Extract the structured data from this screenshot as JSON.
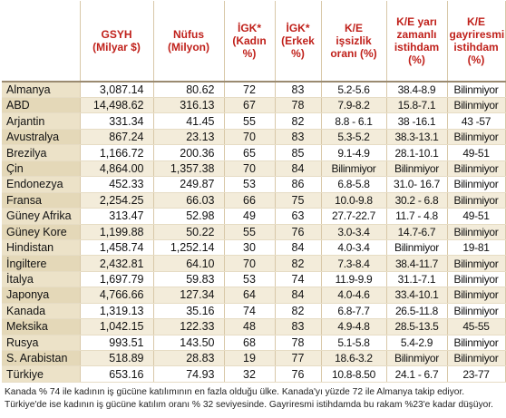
{
  "headers": [
    "",
    "GSYH\n(Milyar $)",
    "Nüfus\n(Milyon)",
    "İGK*\n(Kadın\n%)",
    "İGK*\n(Erkek\n%)",
    "K/E\nişsizlik\noranı (%)",
    "K/E yarı\nzamanlı\nistihdam\n(%)",
    "K/E\ngayriresmi\nistihdam\n(%)"
  ],
  "rows": [
    [
      "Almanya",
      "3,087.14",
      "80.62",
      "72",
      "83",
      "5.2-5.6",
      "38.4-8.9",
      "Bilinmiyor"
    ],
    [
      "ABD",
      "14,498.62",
      "316.13",
      "67",
      "78",
      "7.9-8.2",
      "15.8-7.1",
      "Bilinmiyor"
    ],
    [
      "Arjantin",
      "331.34",
      "41.45",
      "55",
      "82",
      "8.8 - 6.1",
      "38 -16.1",
      "43 -57"
    ],
    [
      "Avustralya",
      "867.24",
      "23.13",
      "70",
      "83",
      "5.3-5.2",
      "38.3-13.1",
      "Bilinmiyor"
    ],
    [
      "Brezilya",
      "1,166.72",
      "200.36",
      "65",
      "85",
      "9.1-4.9",
      "28.1-10.1",
      "49-51"
    ],
    [
      "Çin",
      "4,864.00",
      "1,357.38",
      "70",
      "84",
      "Bilinmiyor",
      "Bilinmiyor",
      "Bilinmiyor"
    ],
    [
      "Endonezya",
      "452.33",
      "249.87",
      "53",
      "86",
      "6.8-5.8",
      "31.0- 16.7",
      "Bilinmiyor"
    ],
    [
      "Fransa",
      "2,254.25",
      "66.03",
      "66",
      "75",
      "10.0-9.8",
      "30.2 - 6.8",
      "Bilinmiyor"
    ],
    [
      "Güney Afrika",
      "313.47",
      "52.98",
      "49",
      "63",
      "27.7-22.7",
      "11.7 - 4.8",
      "49-51"
    ],
    [
      "Güney Kore",
      "1,199.88",
      "50.22",
      "55",
      "76",
      "3.0-3.4",
      "14.7-6.7",
      "Bilinmiyor"
    ],
    [
      "Hindistan",
      "1,458.74",
      "1,252.14",
      "30",
      "84",
      "4.0-3.4",
      "Bilinmiyor",
      "19-81"
    ],
    [
      "İngiltere",
      "2,432.81",
      "64.10",
      "70",
      "82",
      "7.3-8.4",
      "38.4-11.7",
      "Bilinmiyor"
    ],
    [
      "İtalya",
      "1,697.79",
      "59.83",
      "53",
      "74",
      "11.9-9.9",
      "31.1-7.1",
      "Bilinmiyor"
    ],
    [
      "Japonya",
      "4,766.66",
      "127.34",
      "64",
      "84",
      "4.0-4.6",
      "33.4-10.1",
      "Bilinmiyor"
    ],
    [
      "Kanada",
      "1,319.13",
      "35.16",
      "74",
      "82",
      "6.8-7.7",
      "26.5-11.8",
      "Bilinmiyor"
    ],
    [
      "Meksika",
      "1,042.15",
      "122.33",
      "48",
      "83",
      "4.9-4.8",
      "28.5-13.5",
      "45-55"
    ],
    [
      "Rusya",
      "993.51",
      "143.50",
      "68",
      "78",
      "5.1-5.8",
      "5.4-2.9",
      "Bilinmiyor"
    ],
    [
      "S. Arabistan",
      "518.89",
      "28.83",
      "19",
      "77",
      "18.6-3.2",
      "Bilinmiyor",
      "Bilinmiyor"
    ],
    [
      "Türkiye",
      "653.16",
      "74.93",
      "32",
      "76",
      "10.8-8.50",
      "24.1 - 6.7",
      "23-77"
    ]
  ],
  "notes": [
    "Kanada % 74 ile kadının iş gücüne katılımının en fazla olduğu ülke. Kanada'yı yüzde 72 ile Almanya takip ediyor.",
    "Türkiye'de ise kadının iş gücüne katılım oranı % 32 seviyesinde. Gayriresmi istihdamda bu rakam %23'e kadar düşüyor."
  ]
}
